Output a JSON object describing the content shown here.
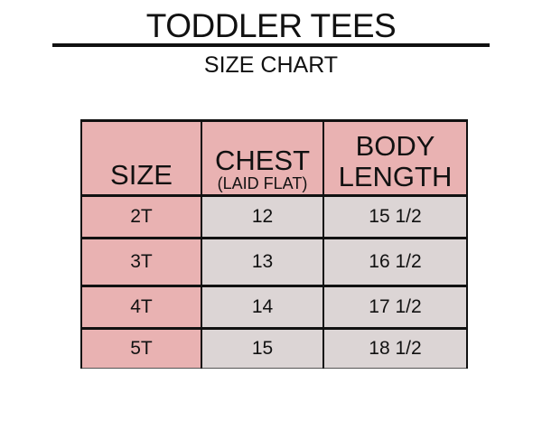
{
  "title": "TODDLER TEES",
  "subtitle": "SIZE CHART",
  "table": {
    "headers": {
      "size": "SIZE",
      "chest": "CHEST",
      "chest_note": "(LAID FLAT)",
      "body_line1": "BODY",
      "body_line2": "LENGTH"
    },
    "rows": [
      {
        "size": "2T",
        "chest": "12",
        "body_length": "15 1/2"
      },
      {
        "size": "3T",
        "chest": "13",
        "body_length": "16 1/2"
      },
      {
        "size": "4T",
        "chest": "14",
        "body_length": "17 1/2"
      },
      {
        "size": "5T",
        "chest": "15",
        "body_length": "18 1/2"
      }
    ]
  },
  "colors": {
    "header_pink": "#e9b2b2",
    "value_grey": "#dcd5d5",
    "border": "#111111"
  }
}
